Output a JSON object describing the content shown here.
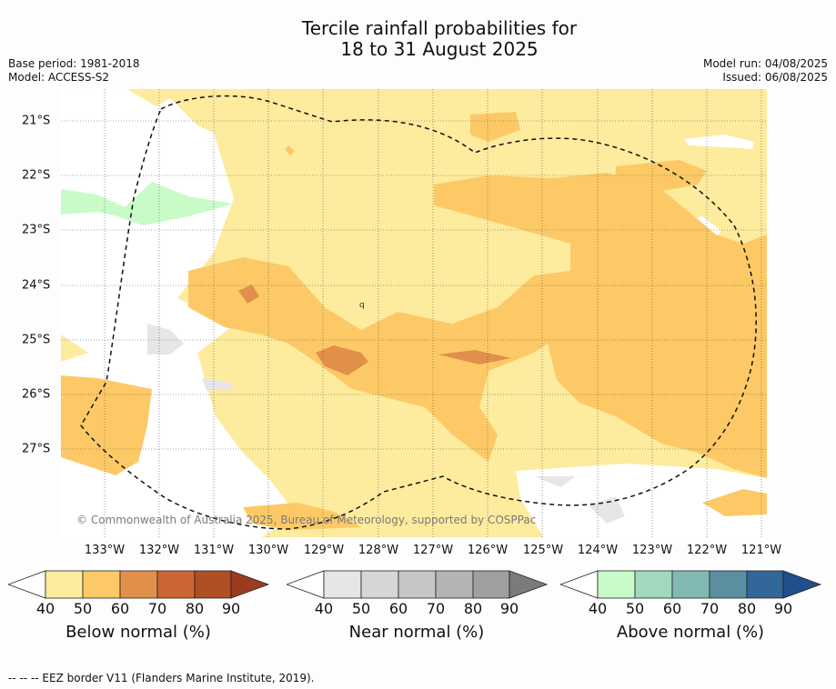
{
  "header": {
    "title_line1": "Tercile rainfall probabilities for",
    "title_line2": "18 to 31 August 2025",
    "base_period": "Base period: 1981-2018",
    "model": "Model: ACCESS-S2",
    "model_run": "Model run: 04/08/2025",
    "issued": "Issued: 06/08/2025"
  },
  "map": {
    "copyright": "© Commonwealth of Australia 2025, Bureau of Meteorology, supported by COSPPac",
    "x_ticks": [
      "133°W",
      "132°W",
      "131°W",
      "130°W",
      "129°W",
      "128°W",
      "127°W",
      "126°W",
      "125°W",
      "124°W",
      "123°W",
      "122°W",
      "121°W"
    ],
    "y_ticks": [
      "21°S",
      "22°S",
      "23°S",
      "24°S",
      "25°S",
      "26°S",
      "27°S"
    ],
    "isolated_label": "q",
    "colors": {
      "below_40": "#fdeb9e",
      "below_50": "#fdc966",
      "below_60": "#e0904a",
      "near_40": "#e6e6e6",
      "above_40": "#c8fbc8",
      "no_signal": "#ffffff"
    }
  },
  "legends": {
    "below": {
      "title": "Below normal (%)",
      "ticks": [
        "40",
        "50",
        "60",
        "70",
        "80",
        "90"
      ],
      "colors": [
        "#fff",
        "#fdeb9e",
        "#fdc966",
        "#e0904a",
        "#cc6633",
        "#b04e24",
        "#9a3c1e"
      ]
    },
    "near": {
      "title": "Near normal (%)",
      "ticks": [
        "40",
        "50",
        "60",
        "70",
        "80",
        "90"
      ],
      "colors": [
        "#fff",
        "#e6e6e6",
        "#d6d6d6",
        "#c6c6c6",
        "#b4b4b4",
        "#9f9f9f",
        "#7b7b7b"
      ]
    },
    "above": {
      "title": "Above normal (%)",
      "ticks": [
        "40",
        "50",
        "60",
        "70",
        "80",
        "90"
      ],
      "colors": [
        "#fff",
        "#c8fbc8",
        "#a1d8be",
        "#82b8b3",
        "#5a8fa0",
        "#336699",
        "#1f4f8c"
      ]
    }
  },
  "footer": "--  --  -- EEZ border V11 (Flanders Marine Institute, 2019)."
}
